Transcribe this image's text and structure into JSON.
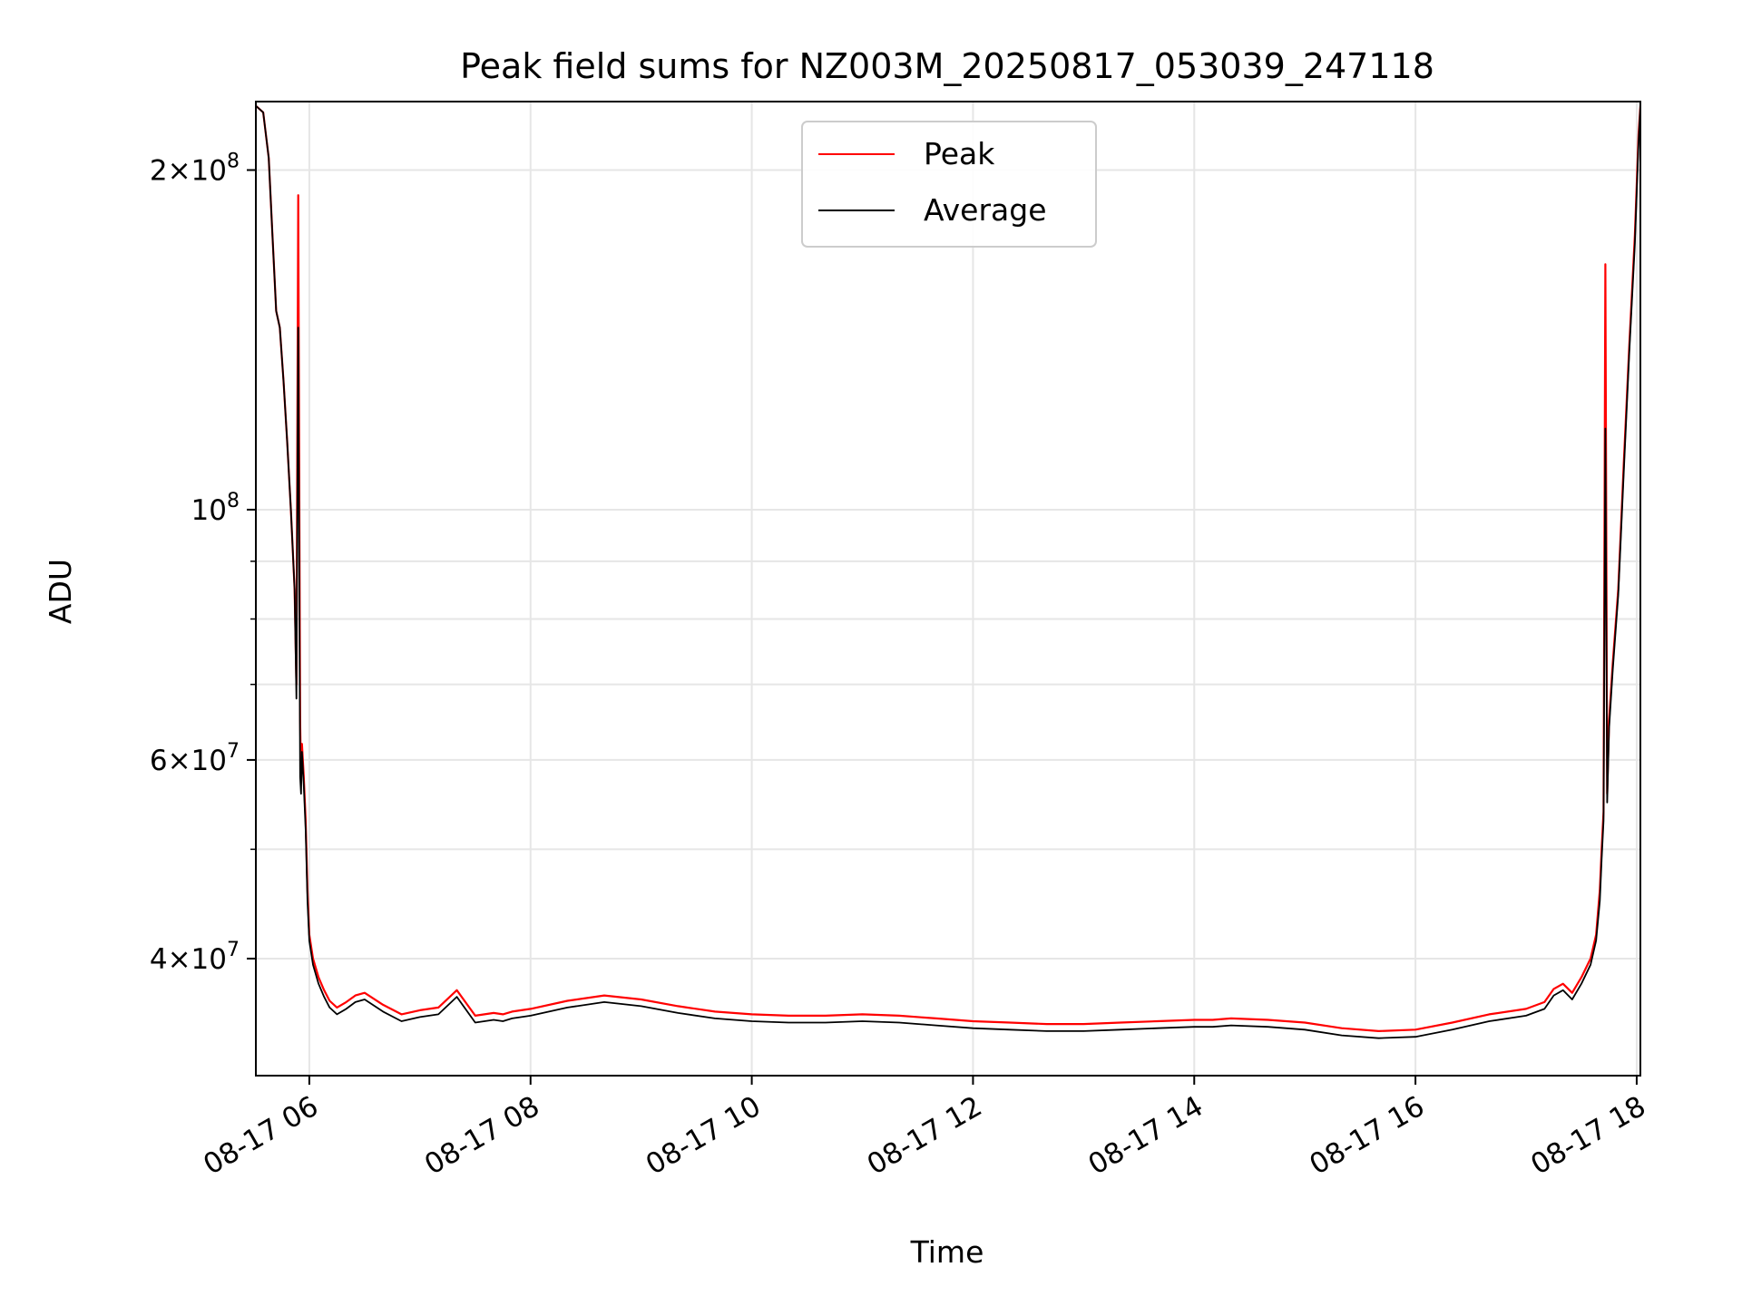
{
  "chart_data": {
    "type": "line",
    "title": "Peak field sums for NZ003M_20250817_053039_247118",
    "xlabel": "Time",
    "ylabel": "ADU",
    "y_scale": "log",
    "x_range": [
      "08-17 05:31",
      "08-17 18:02"
    ],
    "ylim": [
      31500000,
      230000000
    ],
    "grid": true,
    "legend_position": "top-center",
    "x_ticks": [
      "08-17 06",
      "08-17 08",
      "08-17 10",
      "08-17 12",
      "08-17 14",
      "08-17 16",
      "08-17 18"
    ],
    "y_ticks": [
      {
        "value": 40000000,
        "mant": "4",
        "exp": "7"
      },
      {
        "value": 60000000,
        "mant": "6",
        "exp": "7"
      },
      {
        "value": 100000000,
        "mant": "",
        "exp": "8"
      },
      {
        "value": 200000000,
        "mant": "2",
        "exp": "8"
      }
    ],
    "y_minor_ticks": [
      50000000,
      70000000,
      80000000,
      90000000
    ],
    "series": [
      {
        "name": "Peak",
        "color": "#ff0000",
        "x": [
          "05:31",
          "05:35",
          "05:38",
          "05:40",
          "05:42",
          "05:44",
          "05:46",
          "05:48",
          "05:50",
          "05:52",
          "05:53",
          "05:54",
          "05:55",
          "05:55:30",
          "05:56",
          "05:57",
          "05:58",
          "05:59",
          "06:00",
          "06:02",
          "06:05",
          "06:08",
          "06:11",
          "06:15",
          "06:20",
          "06:25",
          "06:30",
          "06:40",
          "06:50",
          "07:00",
          "07:10",
          "07:20",
          "07:30",
          "07:40",
          "07:45",
          "07:50",
          "08:00",
          "08:20",
          "08:40",
          "09:00",
          "09:20",
          "09:40",
          "10:00",
          "10:20",
          "10:40",
          "11:00",
          "11:20",
          "11:40",
          "12:00",
          "12:20",
          "12:40",
          "13:00",
          "13:20",
          "13:40",
          "14:00",
          "14:10",
          "14:20",
          "14:40",
          "15:00",
          "15:20",
          "15:40",
          "16:00",
          "16:20",
          "16:40",
          "17:00",
          "17:10",
          "17:15",
          "17:20",
          "17:25",
          "17:30",
          "17:35",
          "17:38",
          "17:40",
          "17:41",
          "17:42",
          "17:43",
          "17:44",
          "17:45",
          "17:47",
          "17:50",
          "17:53",
          "17:56",
          "17:59",
          "18:01",
          "18:02"
        ],
        "values": [
          228000000,
          225000000,
          205000000,
          175000000,
          150000000,
          145000000,
          130000000,
          115000000,
          100000000,
          85000000,
          70000000,
          190000000,
          65000000,
          58000000,
          62000000,
          58000000,
          53000000,
          46000000,
          42000000,
          40000000,
          38500000,
          37500000,
          36700000,
          36200000,
          36600000,
          37100000,
          37300000,
          36400000,
          35700000,
          36000000,
          36200000,
          37500000,
          35600000,
          35800000,
          35700000,
          35900000,
          36100000,
          36700000,
          37100000,
          36800000,
          36300000,
          35900000,
          35700000,
          35600000,
          35600000,
          35700000,
          35600000,
          35400000,
          35200000,
          35100000,
          35000000,
          35000000,
          35100000,
          35200000,
          35300000,
          35300000,
          35400000,
          35300000,
          35100000,
          34700000,
          34500000,
          34600000,
          35100000,
          35700000,
          36100000,
          36600000,
          37600000,
          38000000,
          37300000,
          38500000,
          40000000,
          42000000,
          46000000,
          50000000,
          54000000,
          165000000,
          56000000,
          65000000,
          73000000,
          85000000,
          110000000,
          140000000,
          175000000,
          215000000,
          228000000
        ]
      },
      {
        "name": "Average",
        "color": "#000000",
        "x": [
          "05:31",
          "05:35",
          "05:38",
          "05:40",
          "05:42",
          "05:44",
          "05:46",
          "05:48",
          "05:50",
          "05:52",
          "05:53",
          "05:54",
          "05:55",
          "05:55:30",
          "05:56",
          "05:57",
          "05:58",
          "05:59",
          "06:00",
          "06:02",
          "06:05",
          "06:08",
          "06:11",
          "06:15",
          "06:20",
          "06:25",
          "06:30",
          "06:40",
          "06:50",
          "07:00",
          "07:10",
          "07:20",
          "07:30",
          "07:40",
          "07:45",
          "07:50",
          "08:00",
          "08:20",
          "08:40",
          "09:00",
          "09:20",
          "09:40",
          "10:00",
          "10:20",
          "10:40",
          "11:00",
          "11:20",
          "11:40",
          "12:00",
          "12:20",
          "12:40",
          "13:00",
          "13:20",
          "13:40",
          "14:00",
          "14:10",
          "14:20",
          "14:40",
          "15:00",
          "15:20",
          "15:40",
          "16:00",
          "16:20",
          "16:40",
          "17:00",
          "17:10",
          "17:15",
          "17:20",
          "17:25",
          "17:30",
          "17:35",
          "17:38",
          "17:40",
          "17:41",
          "17:42",
          "17:43",
          "17:44",
          "17:45",
          "17:47",
          "17:50",
          "17:53",
          "17:56",
          "17:59",
          "18:01",
          "18:02"
        ],
        "values": [
          228000000,
          225000000,
          205000000,
          175000000,
          150000000,
          145000000,
          130000000,
          115000000,
          100000000,
          85000000,
          68000000,
          145000000,
          58000000,
          56000000,
          61000000,
          57000000,
          52000000,
          45000000,
          41500000,
          39500000,
          38000000,
          37000000,
          36200000,
          35700000,
          36100000,
          36600000,
          36800000,
          35900000,
          35200000,
          35500000,
          35700000,
          37000000,
          35100000,
          35300000,
          35200000,
          35400000,
          35600000,
          36200000,
          36600000,
          36300000,
          35800000,
          35400000,
          35200000,
          35100000,
          35100000,
          35200000,
          35100000,
          34900000,
          34700000,
          34600000,
          34500000,
          34500000,
          34600000,
          34700000,
          34800000,
          34800000,
          34900000,
          34800000,
          34600000,
          34200000,
          34000000,
          34100000,
          34600000,
          35200000,
          35600000,
          36100000,
          37100000,
          37500000,
          36800000,
          38000000,
          39500000,
          41500000,
          45000000,
          49000000,
          53000000,
          118000000,
          55000000,
          64000000,
          72000000,
          84000000,
          108000000,
          138000000,
          172000000,
          212000000,
          228000000
        ]
      }
    ]
  }
}
